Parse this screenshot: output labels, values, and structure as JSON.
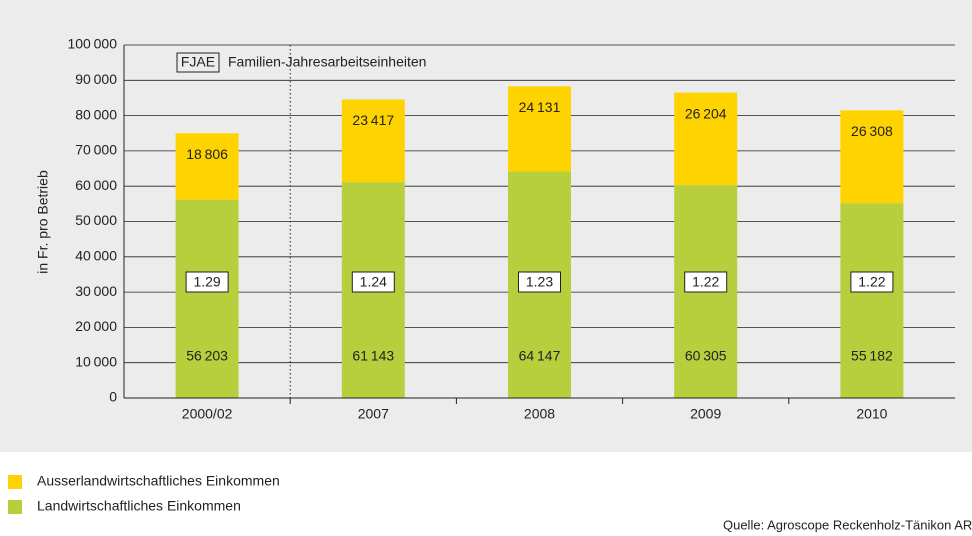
{
  "chart_data": {
    "type": "stacked-bar",
    "ylabel": "in Fr. pro Betrieb",
    "categories": [
      "2000/02",
      "2007",
      "2008",
      "2009",
      "2010"
    ],
    "series": [
      {
        "name": "Landwirtschaftliches Einkommen",
        "color": "#b7cf3c",
        "values": [
          56203,
          61143,
          64147,
          60305,
          55182
        ],
        "value_labels": [
          "56 203",
          "61 143",
          "64 147",
          "60 305",
          "55 182"
        ]
      },
      {
        "name": "Ausserlandwirtschaftliches Einkommen",
        "color": "#ffd300",
        "values": [
          18806,
          23417,
          24131,
          26204,
          26308
        ],
        "value_labels": [
          "18 806",
          "23 417",
          "24 131",
          "26 204",
          "26 308"
        ]
      }
    ],
    "fjae_key": {
      "label": "FJAE",
      "text": "Familien-Jahresarbeitseinheiten"
    },
    "fjae": [
      1.29,
      1.24,
      1.23,
      1.22,
      1.22
    ],
    "ylim": [
      0,
      100000
    ],
    "yticks": [
      0,
      {
        "value": 10000,
        "label": "10 000"
      },
      {
        "value": 20000,
        "label": "20 000"
      },
      {
        "value": 30000,
        "label": "30 000"
      },
      {
        "value": 40000,
        "label": "40 000"
      },
      {
        "value": 50000,
        "label": "50 000"
      },
      {
        "value": 60000,
        "label": "60 000"
      },
      {
        "value": 70000,
        "label": "70 000"
      },
      {
        "value": 80000,
        "label": "80 000"
      },
      {
        "value": 90000,
        "label": "90 000"
      },
      {
        "value": 100000,
        "label": "100 000"
      }
    ],
    "grid": true,
    "source": "Quelle: Agroscope Reckenholz-Tänikon ART"
  }
}
